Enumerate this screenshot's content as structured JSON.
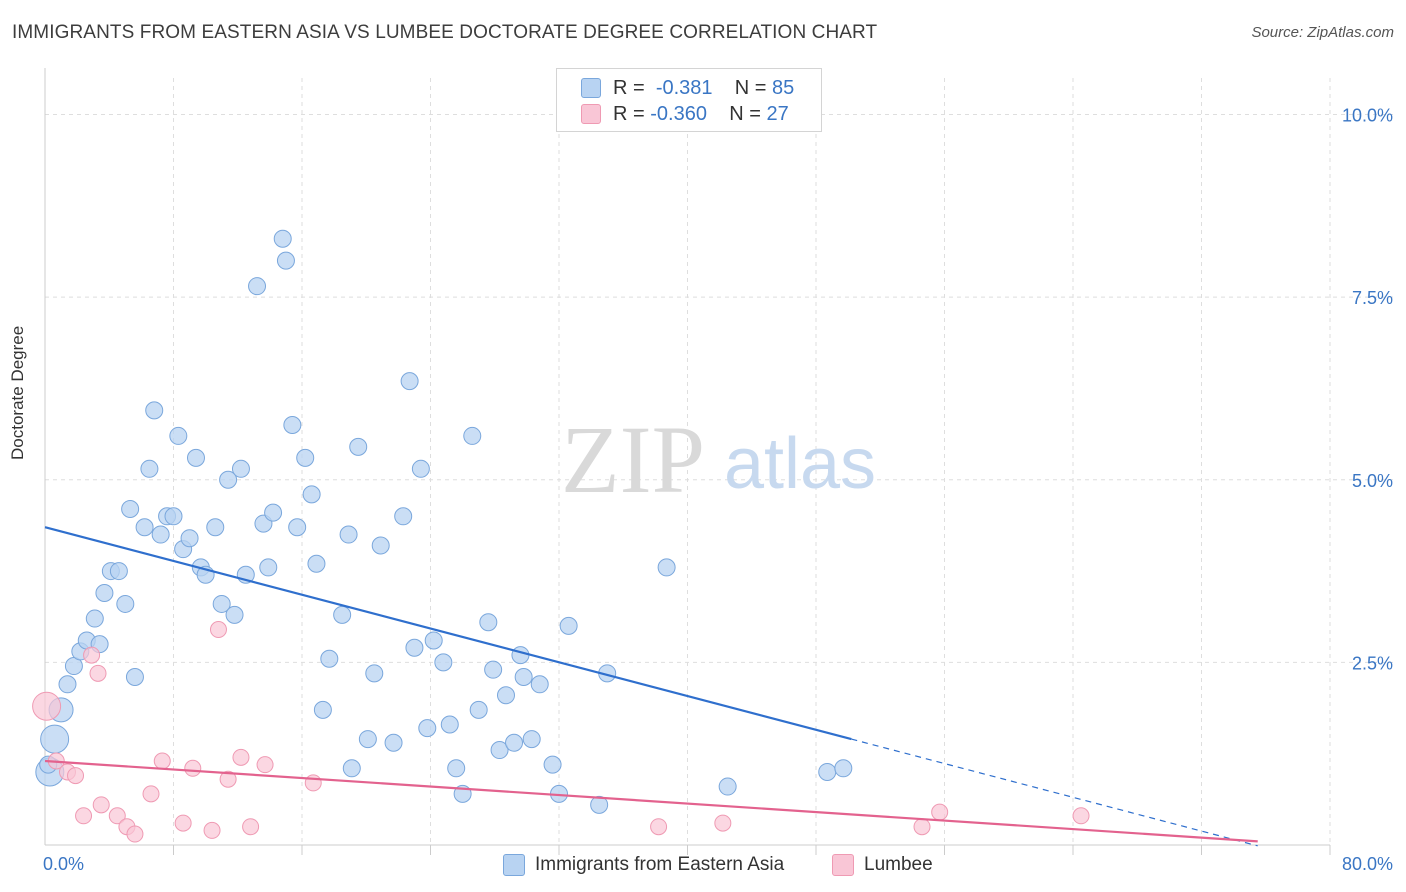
{
  "title": "IMMIGRANTS FROM EASTERN ASIA VS LUMBEE DOCTORATE DEGREE CORRELATION CHART",
  "source": "Source: ZipAtlas.com",
  "watermark": {
    "zip": "ZIP",
    "atlas": "atlas"
  },
  "legend_top": {
    "row1": {
      "r_label": "R =",
      "r_value": "-0.381",
      "n_label": "N =",
      "n_value": "85"
    },
    "row2": {
      "r_label": "R =",
      "r_value": "-0.360",
      "n_label": "N =",
      "n_value": "27"
    }
  },
  "chart_data": {
    "type": "scatter",
    "ylabel": "Doctorate Degree",
    "xlim": [
      0,
      80
    ],
    "ylim": [
      0,
      10.5
    ],
    "x_tick_labels": [
      "0.0%",
      "80.0%"
    ],
    "y_ticks": [
      2.5,
      5.0,
      7.5,
      10.0
    ],
    "y_tick_labels": [
      "2.5%",
      "5.0%",
      "7.5%",
      "10.0%"
    ],
    "grid": true,
    "legend_position": "top-center",
    "colors": {
      "blue_fill": "#b8d3f2",
      "blue_stroke": "#7aa7dc",
      "blue_line": "#2f6fcd",
      "pink_fill": "#f9c6d6",
      "pink_stroke": "#ef9ab3",
      "pink_line": "#e3628e"
    },
    "series": [
      {
        "name": "Immigrants from Eastern Asia",
        "points": [
          [
            0.3,
            1.0
          ],
          [
            0.6,
            1.45
          ],
          [
            1.0,
            1.85
          ],
          [
            1.4,
            2.2
          ],
          [
            1.8,
            2.45
          ],
          [
            2.2,
            2.65
          ],
          [
            2.6,
            2.8
          ],
          [
            3.1,
            3.1
          ],
          [
            3.4,
            2.75
          ],
          [
            3.7,
            3.45
          ],
          [
            4.1,
            3.75
          ],
          [
            4.6,
            3.75
          ],
          [
            5.0,
            3.3
          ],
          [
            5.3,
            4.6
          ],
          [
            5.6,
            2.3
          ],
          [
            6.2,
            4.35
          ],
          [
            6.5,
            5.15
          ],
          [
            6.8,
            5.95
          ],
          [
            7.2,
            4.25
          ],
          [
            7.6,
            4.5
          ],
          [
            8.0,
            4.5
          ],
          [
            8.3,
            5.6
          ],
          [
            8.6,
            4.05
          ],
          [
            9.0,
            4.2
          ],
          [
            9.4,
            5.3
          ],
          [
            9.7,
            3.8
          ],
          [
            10.0,
            3.7
          ],
          [
            10.6,
            4.35
          ],
          [
            11.0,
            3.3
          ],
          [
            11.4,
            5.0
          ],
          [
            11.8,
            3.15
          ],
          [
            12.2,
            5.15
          ],
          [
            12.5,
            3.7
          ],
          [
            13.2,
            7.65
          ],
          [
            13.6,
            4.4
          ],
          [
            13.9,
            3.8
          ],
          [
            14.2,
            4.55
          ],
          [
            14.8,
            8.3
          ],
          [
            15.0,
            8.0
          ],
          [
            15.4,
            5.75
          ],
          [
            15.7,
            4.35
          ],
          [
            16.2,
            5.3
          ],
          [
            16.6,
            4.8
          ],
          [
            16.9,
            3.85
          ],
          [
            17.3,
            1.85
          ],
          [
            17.7,
            2.55
          ],
          [
            18.5,
            3.15
          ],
          [
            18.9,
            4.25
          ],
          [
            19.5,
            5.45
          ],
          [
            19.1,
            1.05
          ],
          [
            20.1,
            1.45
          ],
          [
            20.5,
            2.35
          ],
          [
            20.9,
            4.1
          ],
          [
            21.7,
            1.4
          ],
          [
            22.3,
            4.5
          ],
          [
            22.7,
            6.35
          ],
          [
            23.0,
            2.7
          ],
          [
            23.4,
            5.15
          ],
          [
            23.8,
            1.6
          ],
          [
            24.2,
            2.8
          ],
          [
            24.8,
            2.5
          ],
          [
            25.2,
            1.65
          ],
          [
            25.6,
            1.05
          ],
          [
            26.0,
            0.7
          ],
          [
            26.6,
            5.6
          ],
          [
            27.0,
            1.85
          ],
          [
            27.6,
            3.05
          ],
          [
            27.9,
            2.4
          ],
          [
            28.3,
            1.3
          ],
          [
            28.7,
            2.05
          ],
          [
            29.2,
            1.4
          ],
          [
            29.6,
            2.6
          ],
          [
            29.8,
            2.3
          ],
          [
            30.3,
            1.45
          ],
          [
            30.8,
            2.2
          ],
          [
            31.6,
            1.1
          ],
          [
            32.0,
            0.7
          ],
          [
            32.6,
            3.0
          ],
          [
            34.5,
            0.55
          ],
          [
            35.0,
            2.35
          ],
          [
            38.7,
            3.8
          ],
          [
            42.5,
            0.8
          ],
          [
            48.7,
            1.0
          ],
          [
            49.7,
            1.05
          ],
          [
            0.2,
            1.1
          ]
        ],
        "trend": {
          "x0": 0,
          "y0": 4.35,
          "x1": 50.2,
          "y1": 1.45,
          "dashed_to_x": 75.5
        }
      },
      {
        "name": "Lumbee",
        "points": [
          [
            0.1,
            1.9
          ],
          [
            0.7,
            1.15
          ],
          [
            1.4,
            1.0
          ],
          [
            1.9,
            0.95
          ],
          [
            2.4,
            0.4
          ],
          [
            2.9,
            2.6
          ],
          [
            3.3,
            2.35
          ],
          [
            3.5,
            0.55
          ],
          [
            4.5,
            0.4
          ],
          [
            5.1,
            0.25
          ],
          [
            5.6,
            0.15
          ],
          [
            6.6,
            0.7
          ],
          [
            7.3,
            1.15
          ],
          [
            8.6,
            0.3
          ],
          [
            9.2,
            1.05
          ],
          [
            10.4,
            0.2
          ],
          [
            10.8,
            2.95
          ],
          [
            11.4,
            0.9
          ],
          [
            12.2,
            1.2
          ],
          [
            12.8,
            0.25
          ],
          [
            13.7,
            1.1
          ],
          [
            16.7,
            0.85
          ],
          [
            38.2,
            0.25
          ],
          [
            42.2,
            0.3
          ],
          [
            54.6,
            0.25
          ],
          [
            55.7,
            0.45
          ],
          [
            64.5,
            0.4
          ]
        ],
        "trend": {
          "x0": 0,
          "y0": 1.15,
          "x1": 75.5,
          "y1": 0.05
        }
      }
    ]
  },
  "bottom_legend": {
    "series1": "Immigrants from Eastern Asia",
    "series2": "Lumbee"
  }
}
